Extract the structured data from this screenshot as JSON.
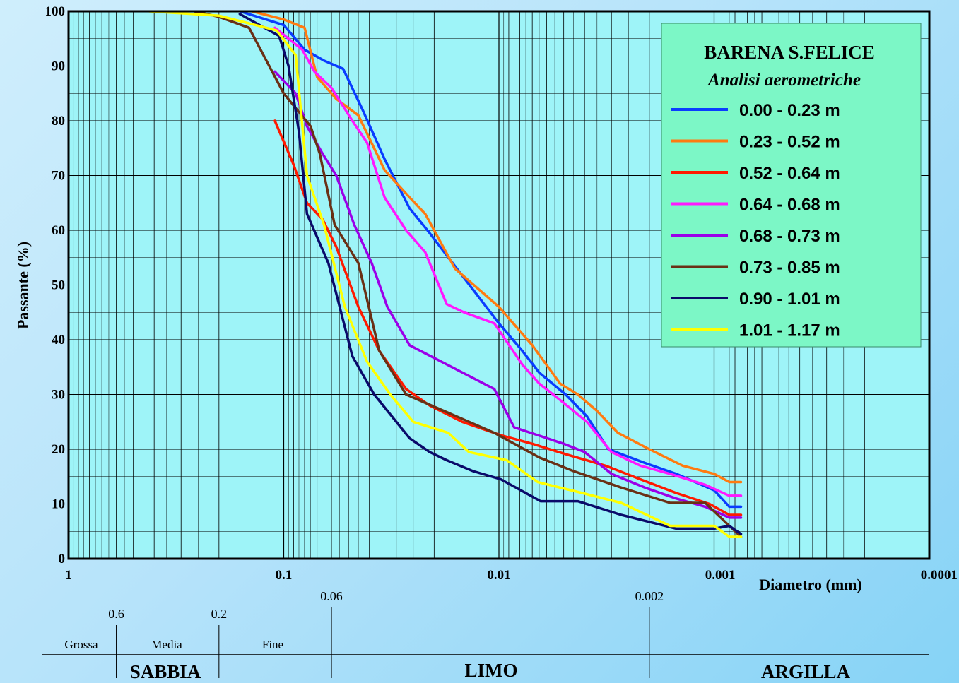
{
  "chart_data": {
    "type": "line",
    "x_scale": "log-reversed",
    "xlim": [
      1,
      0.0001
    ],
    "ylim": [
      0,
      100
    ],
    "grid": true,
    "legend_position": "top-right",
    "ylabel": "Passante (%)",
    "xlabel": "Diametro (mm)",
    "legend_title": "BARENA S.FELICE",
    "legend_subtitle": "Analisi aerometriche",
    "x_ticks": [
      {
        "value": 1,
        "label": "1"
      },
      {
        "value": 0.1,
        "label": "0.1"
      },
      {
        "value": 0.01,
        "label": "0.01"
      },
      {
        "value": 0.001,
        "label": "0.001"
      },
      {
        "value": 0.0001,
        "label": "0.0001"
      }
    ],
    "y_ticks": [
      {
        "value": 0,
        "label": "0"
      },
      {
        "value": 10,
        "label": "10"
      },
      {
        "value": 20,
        "label": "20"
      },
      {
        "value": 30,
        "label": "30"
      },
      {
        "value": 40,
        "label": "40"
      },
      {
        "value": 50,
        "label": "50"
      },
      {
        "value": 60,
        "label": "60"
      },
      {
        "value": 70,
        "label": "70"
      },
      {
        "value": 80,
        "label": "80"
      },
      {
        "value": 90,
        "label": "90"
      },
      {
        "value": 100,
        "label": "100"
      }
    ],
    "series": [
      {
        "name": "0.00 - 0.23 m",
        "color": "#0a3cff",
        "points": [
          [
            0.16,
            100
          ],
          [
            0.1,
            97.5
          ],
          [
            0.08,
            93
          ],
          [
            0.065,
            91
          ],
          [
            0.053,
            89.5
          ],
          [
            0.043,
            82
          ],
          [
            0.034,
            73
          ],
          [
            0.026,
            64
          ],
          [
            0.021,
            59.5
          ],
          [
            0.015,
            52
          ],
          [
            0.01,
            43
          ],
          [
            0.0078,
            38
          ],
          [
            0.0065,
            34
          ],
          [
            0.0049,
            30
          ],
          [
            0.0039,
            26
          ],
          [
            0.0031,
            20
          ],
          [
            0.0021,
            17.5
          ],
          [
            0.0015,
            15.5
          ],
          [
            0.001,
            12.5
          ],
          [
            0.00085,
            9.5
          ],
          [
            0.00075,
            9.5
          ]
        ]
      },
      {
        "name": "0.23 - 0.52 m",
        "color": "#ff7a10",
        "points": [
          [
            0.14,
            100
          ],
          [
            0.1,
            98.5
          ],
          [
            0.08,
            97
          ],
          [
            0.07,
            88
          ],
          [
            0.057,
            84
          ],
          [
            0.045,
            81
          ],
          [
            0.034,
            71
          ],
          [
            0.026,
            66
          ],
          [
            0.022,
            63
          ],
          [
            0.016,
            53
          ],
          [
            0.01,
            46
          ],
          [
            0.007,
            39
          ],
          [
            0.0052,
            32
          ],
          [
            0.0043,
            30
          ],
          [
            0.0035,
            27
          ],
          [
            0.0028,
            23
          ],
          [
            0.002,
            20
          ],
          [
            0.0014,
            17
          ],
          [
            0.001,
            15.5
          ],
          [
            0.00085,
            14
          ],
          [
            0.00075,
            14
          ]
        ]
      },
      {
        "name": "0.52 - 0.64 m",
        "color": "#ff1a00",
        "points": [
          [
            0.11,
            80
          ],
          [
            0.09,
            72
          ],
          [
            0.078,
            65
          ],
          [
            0.066,
            62
          ],
          [
            0.057,
            57
          ],
          [
            0.045,
            46
          ],
          [
            0.036,
            38
          ],
          [
            0.027,
            31
          ],
          [
            0.021,
            28
          ],
          [
            0.0148,
            25
          ],
          [
            0.0097,
            22.5
          ],
          [
            0.007,
            21
          ],
          [
            0.0048,
            19
          ],
          [
            0.0032,
            17
          ],
          [
            0.0022,
            14.5
          ],
          [
            0.0015,
            12
          ],
          [
            0.00105,
            10
          ],
          [
            0.00085,
            8
          ],
          [
            0.00075,
            8
          ]
        ]
      },
      {
        "name": "0.64 - 0.68 m",
        "color": "#ff18ff",
        "points": [
          [
            0.11,
            97
          ],
          [
            0.095,
            95
          ],
          [
            0.082,
            93
          ],
          [
            0.072,
            89
          ],
          [
            0.06,
            86
          ],
          [
            0.048,
            80
          ],
          [
            0.041,
            76
          ],
          [
            0.034,
            66
          ],
          [
            0.027,
            60
          ],
          [
            0.022,
            56
          ],
          [
            0.0175,
            46.5
          ],
          [
            0.0145,
            45
          ],
          [
            0.0105,
            43
          ],
          [
            0.0078,
            35.5
          ],
          [
            0.0065,
            32
          ],
          [
            0.0052,
            29
          ],
          [
            0.0039,
            25
          ],
          [
            0.003,
            19.5
          ],
          [
            0.0022,
            17
          ],
          [
            0.0016,
            15.5
          ],
          [
            0.0011,
            13.5
          ],
          [
            0.00085,
            11.5
          ],
          [
            0.00075,
            11.5
          ]
        ]
      },
      {
        "name": "0.68 - 0.73 m",
        "color": "#9b00e8",
        "points": [
          [
            0.11,
            89
          ],
          [
            0.088,
            85
          ],
          [
            0.078,
            79
          ],
          [
            0.066,
            74
          ],
          [
            0.057,
            70
          ],
          [
            0.047,
            61
          ],
          [
            0.039,
            54
          ],
          [
            0.033,
            46
          ],
          [
            0.026,
            39
          ],
          [
            0.0105,
            31
          ],
          [
            0.0085,
            24
          ],
          [
            0.005,
            21
          ],
          [
            0.004,
            19.5
          ],
          [
            0.003,
            15.5
          ],
          [
            0.0021,
            13
          ],
          [
            0.0015,
            11
          ],
          [
            0.0011,
            9.5
          ],
          [
            0.00085,
            7.5
          ],
          [
            0.00075,
            7.5
          ]
        ]
      },
      {
        "name": "0.73 - 0.85 m",
        "color": "#6a3015",
        "points": [
          [
            0.26,
            100
          ],
          [
            0.2,
            99
          ],
          [
            0.145,
            97
          ],
          [
            0.1,
            85
          ],
          [
            0.075,
            79
          ],
          [
            0.068,
            74
          ],
          [
            0.058,
            61
          ],
          [
            0.045,
            54
          ],
          [
            0.036,
            38
          ],
          [
            0.027,
            30
          ],
          [
            0.0105,
            23
          ],
          [
            0.0065,
            18.5
          ],
          [
            0.0045,
            16
          ],
          [
            0.0027,
            13
          ],
          [
            0.0016,
            10.2
          ],
          [
            0.0011,
            10.2
          ],
          [
            0.00085,
            6
          ],
          [
            0.00075,
            4
          ]
        ]
      },
      {
        "name": "0.90 - 1.01 m",
        "color": "#0a0a6a",
        "points": [
          [
            0.16,
            99.5
          ],
          [
            0.105,
            95.5
          ],
          [
            0.095,
            90
          ],
          [
            0.085,
            78
          ],
          [
            0.078,
            63
          ],
          [
            0.062,
            54
          ],
          [
            0.048,
            37
          ],
          [
            0.038,
            30
          ],
          [
            0.026,
            22
          ],
          [
            0.021,
            19.5
          ],
          [
            0.0175,
            18
          ],
          [
            0.0132,
            16
          ],
          [
            0.0098,
            14.5
          ],
          [
            0.0064,
            10.5
          ],
          [
            0.0043,
            10.5
          ],
          [
            0.0027,
            8
          ],
          [
            0.0015,
            5.5
          ],
          [
            0.001,
            5.5
          ],
          [
            0.00085,
            6
          ],
          [
            0.00075,
            4.5
          ]
        ]
      },
      {
        "name": "1.01 - 1.17 m",
        "color": "#ffff00",
        "points": [
          [
            0.42,
            100
          ],
          [
            0.2,
            99.2
          ],
          [
            0.108,
            96.5
          ],
          [
            0.088,
            92
          ],
          [
            0.078,
            70
          ],
          [
            0.065,
            61
          ],
          [
            0.052,
            46
          ],
          [
            0.041,
            36
          ],
          [
            0.032,
            30
          ],
          [
            0.025,
            25
          ],
          [
            0.0172,
            23
          ],
          [
            0.0138,
            19.5
          ],
          [
            0.0092,
            18
          ],
          [
            0.0066,
            14
          ],
          [
            0.0041,
            12
          ],
          [
            0.0027,
            10.2
          ],
          [
            0.0016,
            6
          ],
          [
            0.001,
            6
          ],
          [
            0.00085,
            4
          ],
          [
            0.00075,
            4
          ]
        ]
      }
    ],
    "soil_scale": {
      "boundaries": [
        {
          "value": 0.6,
          "label": "0.6"
        },
        {
          "value": 0.2,
          "label": "0.2"
        },
        {
          "value": 0.06,
          "label": "0.06"
        },
        {
          "value": 0.002,
          "label": "0.002"
        }
      ],
      "sand_subclasses": [
        "Grossa",
        "Media",
        "Fine"
      ],
      "classes": [
        "SABBIA",
        "LIMO",
        "ARGILLA"
      ]
    }
  }
}
